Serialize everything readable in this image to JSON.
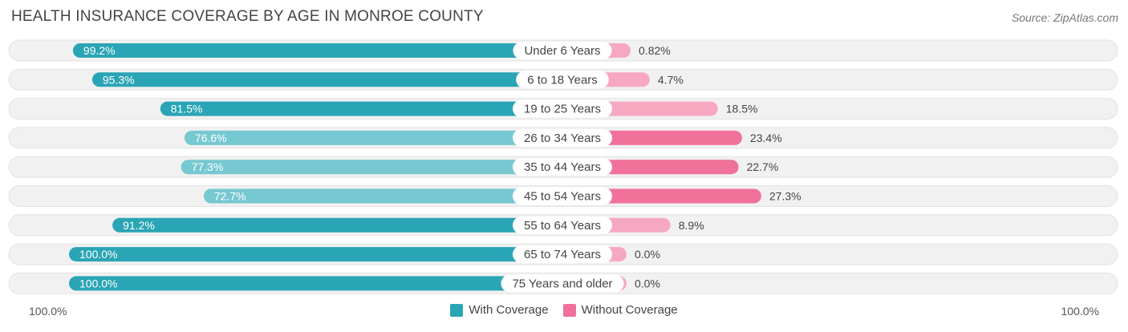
{
  "header": {
    "title": "HEALTH INSURANCE COVERAGE BY AGE IN MONROE COUNTY",
    "source": "Source: ZipAtlas.com"
  },
  "axis": {
    "left_label": "100.0%",
    "right_label": "100.0%"
  },
  "legend": {
    "with_label": "With Coverage",
    "without_label": "Without Coverage"
  },
  "colors": {
    "with_strong": "#2aa5b5",
    "with_light": "#76c8d1",
    "without_strong": "#f0719a",
    "without_light": "#f6a8c1",
    "track": "#f1f1f1"
  },
  "chart_data": {
    "type": "bar",
    "title": "HEALTH INSURANCE COVERAGE BY AGE IN MONROE COUNTY",
    "orientation": "horizontal-diverging",
    "categories": [
      "Under 6 Years",
      "6 to 18 Years",
      "19 to 25 Years",
      "26 to 34 Years",
      "35 to 44 Years",
      "45 to 54 Years",
      "55 to 64 Years",
      "65 to 74 Years",
      "75 Years and older"
    ],
    "series": [
      {
        "name": "With Coverage",
        "values": [
          99.2,
          95.3,
          81.5,
          76.6,
          77.3,
          72.7,
          91.2,
          100.0,
          100.0
        ],
        "labels": [
          "99.2%",
          "95.3%",
          "81.5%",
          "76.6%",
          "77.3%",
          "72.7%",
          "91.2%",
          "100.0%",
          "100.0%"
        ]
      },
      {
        "name": "Without Coverage",
        "values": [
          0.82,
          4.7,
          18.5,
          23.4,
          22.7,
          27.3,
          8.9,
          0.0,
          0.0
        ],
        "labels": [
          "0.82%",
          "4.7%",
          "18.5%",
          "23.4%",
          "22.7%",
          "27.3%",
          "8.9%",
          "0.0%",
          "0.0%"
        ]
      }
    ],
    "xlim": [
      0,
      100
    ],
    "legend_position": "bottom-center"
  }
}
